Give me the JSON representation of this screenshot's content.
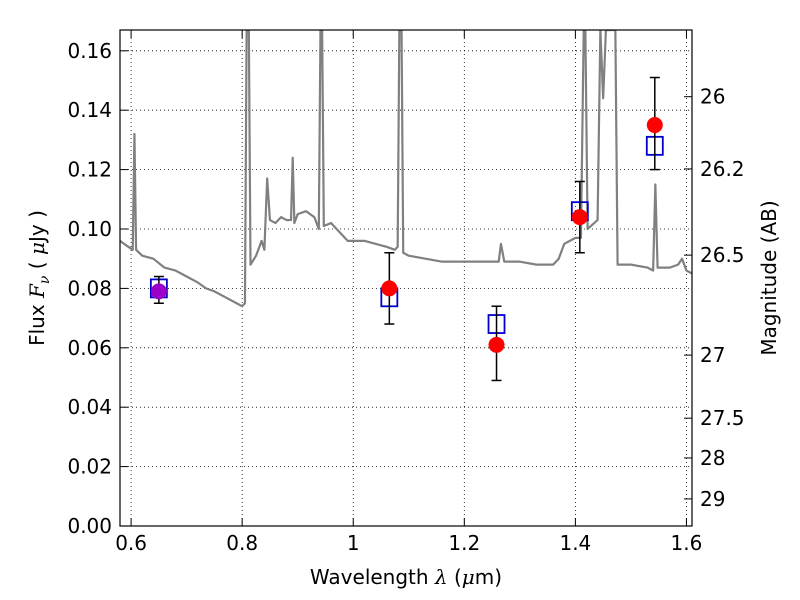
{
  "chart_data": {
    "type": "scatter",
    "xlabel": {
      "prefix": "Wavelength  ",
      "symbol": "λ",
      "unit_open": " (",
      "unit_mu": "μ",
      "unit_rest": "m)"
    },
    "ylabel": {
      "prefix": "Flux  ",
      "symbol": "F",
      "sub": "ν",
      "unit_open": "  ( ",
      "unit_mu": "μ",
      "unit_rest": "Jy )"
    },
    "y2label": "Magnitude (AB)",
    "xlim": [
      0.58,
      1.61
    ],
    "ylim": [
      0.0,
      0.167
    ],
    "x_ticks": [
      {
        "value": 0.6,
        "label": "0.6"
      },
      {
        "value": 0.8,
        "label": "0.8"
      },
      {
        "value": 1.0,
        "label": "1"
      },
      {
        "value": 1.2,
        "label": "1.2"
      },
      {
        "value": 1.4,
        "label": "1.4"
      },
      {
        "value": 1.6,
        "label": "1.6"
      }
    ],
    "y_ticks": [
      {
        "value": 0.0,
        "label": "0.00"
      },
      {
        "value": 0.02,
        "label": "0.02"
      },
      {
        "value": 0.04,
        "label": "0.04"
      },
      {
        "value": 0.06,
        "label": "0.06"
      },
      {
        "value": 0.08,
        "label": "0.08"
      },
      {
        "value": 0.1,
        "label": "0.10"
      },
      {
        "value": 0.12,
        "label": "0.12"
      },
      {
        "value": 0.14,
        "label": "0.14"
      },
      {
        "value": 0.16,
        "label": "0.16"
      }
    ],
    "y2_ticks": [
      {
        "value": 26,
        "label": "26"
      },
      {
        "value": 26.2,
        "label": "26.2"
      },
      {
        "value": 26.5,
        "label": "26.5"
      },
      {
        "value": 27,
        "label": "27"
      },
      {
        "value": 27.5,
        "label": "27.5"
      },
      {
        "value": 28,
        "label": "28"
      },
      {
        "value": 29,
        "label": "29"
      }
    ],
    "grid": true,
    "grid_style": "dotted",
    "colors": {
      "model": "#808080",
      "observed": "#ff0000",
      "model_band": "#0000cc",
      "error_bar": "#000000",
      "first_point": "#9b00c8"
    },
    "series": [
      {
        "kind": "line",
        "points": [
          [
            0.58,
            0.096
          ],
          [
            0.595,
            0.094
          ],
          [
            0.603,
            0.093
          ],
          [
            0.606,
            0.132
          ],
          [
            0.609,
            0.093
          ],
          [
            0.62,
            0.091
          ],
          [
            0.64,
            0.09
          ],
          [
            0.66,
            0.087
          ],
          [
            0.68,
            0.086
          ],
          [
            0.7,
            0.084
          ],
          [
            0.72,
            0.082
          ],
          [
            0.735,
            0.08
          ],
          [
            0.75,
            0.079
          ],
          [
            0.77,
            0.077
          ],
          [
            0.79,
            0.075
          ],
          [
            0.8,
            0.074
          ],
          [
            0.805,
            0.075
          ],
          [
            0.808,
            0.167
          ],
          [
            0.812,
            0.167
          ],
          [
            0.815,
            0.088
          ],
          [
            0.825,
            0.091
          ],
          [
            0.835,
            0.096
          ],
          [
            0.84,
            0.093
          ],
          [
            0.845,
            0.117
          ],
          [
            0.85,
            0.103
          ],
          [
            0.86,
            0.102
          ],
          [
            0.87,
            0.104
          ],
          [
            0.88,
            0.103
          ],
          [
            0.888,
            0.103
          ],
          [
            0.891,
            0.124
          ],
          [
            0.894,
            0.102
          ],
          [
            0.9,
            0.105
          ],
          [
            0.915,
            0.106
          ],
          [
            0.93,
            0.104
          ],
          [
            0.938,
            0.1
          ],
          [
            0.941,
            0.167
          ],
          [
            0.944,
            0.167
          ],
          [
            0.947,
            0.101
          ],
          [
            0.96,
            0.102
          ],
          [
            0.97,
            0.1
          ],
          [
            0.98,
            0.098
          ],
          [
            0.99,
            0.096
          ],
          [
            1.0,
            0.096
          ],
          [
            1.02,
            0.096
          ],
          [
            1.04,
            0.095
          ],
          [
            1.06,
            0.094
          ],
          [
            1.075,
            0.093
          ],
          [
            1.08,
            0.094
          ],
          [
            1.083,
            0.167
          ],
          [
            1.087,
            0.167
          ],
          [
            1.09,
            0.092
          ],
          [
            1.1,
            0.091
          ],
          [
            1.13,
            0.09
          ],
          [
            1.16,
            0.089
          ],
          [
            1.19,
            0.089
          ],
          [
            1.22,
            0.089
          ],
          [
            1.25,
            0.089
          ],
          [
            1.262,
            0.089
          ],
          [
            1.266,
            0.095
          ],
          [
            1.272,
            0.089
          ],
          [
            1.3,
            0.089
          ],
          [
            1.33,
            0.088
          ],
          [
            1.36,
            0.088
          ],
          [
            1.37,
            0.09
          ],
          [
            1.38,
            0.095
          ],
          [
            1.39,
            0.096
          ],
          [
            1.4,
            0.097
          ],
          [
            1.41,
            0.097
          ],
          [
            1.415,
            0.167
          ],
          [
            1.418,
            0.167
          ],
          [
            1.422,
            0.1
          ],
          [
            1.44,
            0.103
          ],
          [
            1.445,
            0.167
          ],
          [
            1.45,
            0.144
          ],
          [
            1.455,
            0.167
          ],
          [
            1.472,
            0.167
          ],
          [
            1.476,
            0.088
          ],
          [
            1.5,
            0.088
          ],
          [
            1.53,
            0.087
          ],
          [
            1.54,
            0.086
          ],
          [
            1.544,
            0.115
          ],
          [
            1.548,
            0.087
          ],
          [
            1.56,
            0.087
          ],
          [
            1.57,
            0.087
          ],
          [
            1.585,
            0.088
          ],
          [
            1.592,
            0.09
          ],
          [
            1.6,
            0.086
          ],
          [
            1.61,
            0.085
          ]
        ]
      },
      {
        "kind": "markers-square",
        "x": [
          0.65,
          1.065,
          1.258,
          1.408,
          1.543
        ],
        "y": [
          0.08,
          0.077,
          0.068,
          0.106,
          0.128
        ]
      },
      {
        "kind": "markers-circle",
        "x": [
          0.65,
          1.065,
          1.258,
          1.408,
          1.543
        ],
        "y": [
          0.079,
          0.08,
          0.061,
          0.104,
          0.135
        ],
        "yerr_low": [
          0.075,
          0.068,
          0.049,
          0.092,
          0.12
        ],
        "yerr_high": [
          0.084,
          0.092,
          0.074,
          0.116,
          0.151
        ]
      }
    ]
  }
}
